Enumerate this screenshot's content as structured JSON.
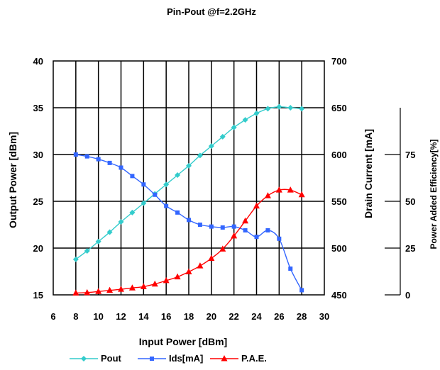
{
  "chart_data": {
    "type": "line",
    "title": "Pin-Pout @f=2.2GHz",
    "xlabel": "Input Power [dBm]",
    "ylabel_left": "Output Power [dBm]",
    "ylabel_right": "Drain Current [mA]",
    "ylabel_right2": "Power Added Efficiency[%]",
    "xlim": [
      6,
      30
    ],
    "ylim_left": [
      15,
      40
    ],
    "ylim_right": [
      450,
      700
    ],
    "ylim_right2": [
      0,
      100
    ],
    "x_ticks": [
      "6",
      "8",
      "10",
      "12",
      "14",
      "16",
      "18",
      "20",
      "22",
      "24",
      "26",
      "28",
      "30"
    ],
    "y_left_ticks": [
      "15",
      "20",
      "25",
      "30",
      "35",
      "40"
    ],
    "y_right_ticks": [
      "450",
      "500",
      "550",
      "600",
      "650",
      "700"
    ],
    "y_right2_ticks": [
      "0",
      "25",
      "50",
      "75"
    ],
    "grid": true,
    "legend_position": "bottom",
    "series": [
      {
        "name": "Pout",
        "axis": "left",
        "color": "#33CCCC",
        "marker": "diamond",
        "x": [
          8,
          9,
          10,
          11,
          12,
          13,
          14,
          15,
          16,
          17,
          18,
          19,
          20,
          21,
          22,
          23,
          24,
          25,
          26,
          27,
          28
        ],
        "y": [
          18.8,
          19.7,
          20.7,
          21.7,
          22.8,
          23.8,
          24.8,
          25.8,
          26.8,
          27.8,
          28.8,
          29.9,
          30.9,
          31.9,
          32.9,
          33.7,
          34.4,
          34.9,
          35.1,
          35.0,
          34.9
        ]
      },
      {
        "name": "Ids[mA]",
        "axis": "right",
        "color": "#3366FF",
        "marker": "square",
        "x": [
          8,
          9,
          10,
          11,
          12,
          13,
          14,
          15,
          16,
          17,
          18,
          19,
          20,
          21,
          22,
          23,
          24,
          25,
          26,
          27,
          28
        ],
        "y": [
          600,
          598,
          595,
          591,
          586,
          577,
          568,
          557,
          545,
          538,
          530,
          525,
          523,
          522,
          523,
          519,
          512,
          519,
          510,
          478,
          455
        ]
      },
      {
        "name": "P.A.E.",
        "axis": "right2",
        "color": "#FF0000",
        "marker": "triangle",
        "x": [
          8,
          9,
          10,
          11,
          12,
          13,
          14,
          15,
          16,
          17,
          18,
          19,
          20,
          21,
          22,
          23,
          24,
          25,
          26,
          27,
          28
        ],
        "y": [
          1.0,
          1.2,
          1.8,
          2.4,
          3.0,
          3.7,
          4.4,
          5.8,
          7.6,
          9.6,
          12.3,
          15.5,
          19.5,
          24.5,
          31.5,
          39.5,
          47.5,
          53.0,
          56.0,
          56.0,
          53.5
        ]
      }
    ]
  }
}
